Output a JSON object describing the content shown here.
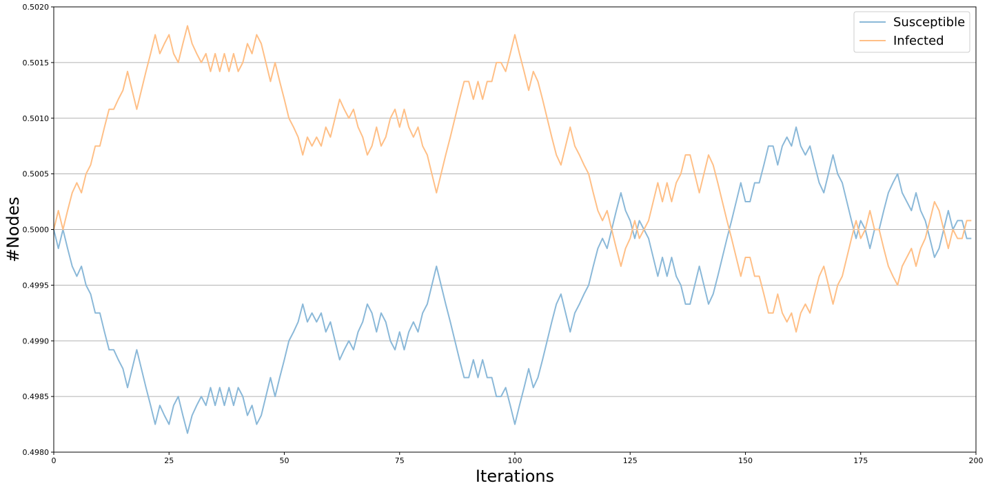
{
  "chart_data": {
    "type": "line",
    "title": "",
    "xlabel": "Iterations",
    "ylabel": "#Nodes",
    "xlim": [
      0,
      200
    ],
    "ylim": [
      0.498,
      0.502
    ],
    "xticks": [
      0,
      25,
      50,
      75,
      100,
      125,
      150,
      175,
      200
    ],
    "xtick_labels": [
      "0",
      "25",
      "50",
      "75",
      "100",
      "125",
      "150",
      "175",
      "200"
    ],
    "yticks": [
      0.498,
      0.4985,
      0.499,
      0.4995,
      0.5,
      0.5005,
      0.501,
      0.5015,
      0.502
    ],
    "ytick_labels": [
      "0.4980",
      "0.4985",
      "0.4990",
      "0.4995",
      "0.5000",
      "0.5005",
      "0.5010",
      "0.5015",
      "0.5020"
    ],
    "grid": "horizontal",
    "legend_position": "top-right",
    "series": [
      {
        "name": "Susceptible",
        "color": "#8ab8d8",
        "x": [
          0,
          1,
          2,
          3,
          4,
          5,
          6,
          7,
          8,
          9,
          10,
          11,
          12,
          13,
          14,
          15,
          16,
          17,
          18,
          19,
          20,
          21,
          22,
          23,
          24,
          25,
          26,
          27,
          28,
          29,
          30,
          31,
          32,
          33,
          34,
          35,
          36,
          37,
          38,
          39,
          40,
          41,
          42,
          43,
          44,
          45,
          46,
          47,
          48,
          49,
          50,
          51,
          52,
          53,
          54,
          55,
          56,
          57,
          58,
          59,
          60,
          61,
          62,
          63,
          64,
          65,
          66,
          67,
          68,
          69,
          70,
          71,
          72,
          73,
          74,
          75,
          76,
          77,
          78,
          79,
          80,
          81,
          82,
          83,
          84,
          85,
          86,
          87,
          88,
          89,
          90,
          91,
          92,
          93,
          94,
          95,
          96,
          97,
          98,
          99,
          100,
          101,
          102,
          103,
          104,
          105,
          106,
          107,
          108,
          109,
          110,
          111,
          112,
          113,
          114,
          115,
          116,
          117,
          118,
          119,
          120,
          121,
          122,
          123,
          124,
          125,
          126,
          127,
          128,
          129,
          130,
          131,
          132,
          133,
          134,
          135,
          136,
          137,
          138,
          139,
          140,
          141,
          142,
          143,
          144,
          145,
          146,
          147,
          148,
          149,
          150,
          151,
          152,
          153,
          154,
          155,
          156,
          157,
          158,
          159,
          160,
          161,
          162,
          163,
          164,
          165,
          166,
          167,
          168,
          169,
          170,
          171,
          172,
          173,
          174,
          175,
          176,
          177,
          178,
          179,
          180,
          181,
          182,
          183,
          184,
          185,
          186,
          187,
          188,
          189,
          190,
          191,
          192,
          193,
          194,
          195,
          196,
          197,
          198,
          199
        ],
        "values": [
          0.5,
          0.49983,
          0.5,
          0.49983,
          0.49967,
          0.49958,
          0.49967,
          0.4995,
          0.49942,
          0.49925,
          0.49925,
          0.49908,
          0.49892,
          0.49892,
          0.49883,
          0.49875,
          0.49858,
          0.49875,
          0.49892,
          0.49875,
          0.49858,
          0.49842,
          0.49825,
          0.49842,
          0.49833,
          0.49825,
          0.49842,
          0.4985,
          0.49833,
          0.49817,
          0.49833,
          0.49842,
          0.4985,
          0.49842,
          0.49858,
          0.49842,
          0.49858,
          0.49842,
          0.49858,
          0.49842,
          0.49858,
          0.4985,
          0.49833,
          0.49842,
          0.49825,
          0.49833,
          0.4985,
          0.49867,
          0.4985,
          0.49867,
          0.49883,
          0.499,
          0.49908,
          0.49917,
          0.49933,
          0.49917,
          0.49925,
          0.49917,
          0.49925,
          0.49908,
          0.49917,
          0.499,
          0.49883,
          0.49892,
          0.499,
          0.49892,
          0.49908,
          0.49917,
          0.49933,
          0.49925,
          0.49908,
          0.49925,
          0.49917,
          0.499,
          0.49892,
          0.49908,
          0.49892,
          0.49908,
          0.49917,
          0.49908,
          0.49925,
          0.49933,
          0.4995,
          0.49967,
          0.4995,
          0.49933,
          0.49917,
          0.499,
          0.49883,
          0.49867,
          0.49867,
          0.49883,
          0.49867,
          0.49883,
          0.49867,
          0.49867,
          0.4985,
          0.4985,
          0.49858,
          0.49842,
          0.49825,
          0.49842,
          0.49858,
          0.49875,
          0.49858,
          0.49867,
          0.49883,
          0.499,
          0.49917,
          0.49933,
          0.49942,
          0.49925,
          0.49908,
          0.49925,
          0.49933,
          0.49942,
          0.4995,
          0.49967,
          0.49983,
          0.49992,
          0.49983,
          0.5,
          0.50017,
          0.50033,
          0.50017,
          0.50008,
          0.49992,
          0.50008,
          0.5,
          0.49992,
          0.49975,
          0.49958,
          0.49975,
          0.49958,
          0.49975,
          0.49958,
          0.4995,
          0.49933,
          0.49933,
          0.4995,
          0.49967,
          0.4995,
          0.49933,
          0.49942,
          0.49958,
          0.49975,
          0.49992,
          0.50008,
          0.50025,
          0.50042,
          0.50025,
          0.50025,
          0.50042,
          0.50042,
          0.50058,
          0.50075,
          0.50075,
          0.50058,
          0.50075,
          0.50083,
          0.50075,
          0.50092,
          0.50075,
          0.50067,
          0.50075,
          0.50058,
          0.50042,
          0.50033,
          0.5005,
          0.50067,
          0.5005,
          0.50042,
          0.50025,
          0.50008,
          0.49992,
          0.50008,
          0.5,
          0.49983,
          0.5,
          0.5,
          0.50017,
          0.50033,
          0.50042,
          0.5005,
          0.50033,
          0.50025,
          0.50017,
          0.50033,
          0.50017,
          0.50008,
          0.49992,
          0.49975,
          0.49983,
          0.5,
          0.50017,
          0.5,
          0.50008,
          0.50008,
          0.49992,
          0.49992
        ]
      },
      {
        "name": "Infected",
        "color": "#ffbf86",
        "x": [
          0,
          1,
          2,
          3,
          4,
          5,
          6,
          7,
          8,
          9,
          10,
          11,
          12,
          13,
          14,
          15,
          16,
          17,
          18,
          19,
          20,
          21,
          22,
          23,
          24,
          25,
          26,
          27,
          28,
          29,
          30,
          31,
          32,
          33,
          34,
          35,
          36,
          37,
          38,
          39,
          40,
          41,
          42,
          43,
          44,
          45,
          46,
          47,
          48,
          49,
          50,
          51,
          52,
          53,
          54,
          55,
          56,
          57,
          58,
          59,
          60,
          61,
          62,
          63,
          64,
          65,
          66,
          67,
          68,
          69,
          70,
          71,
          72,
          73,
          74,
          75,
          76,
          77,
          78,
          79,
          80,
          81,
          82,
          83,
          84,
          85,
          86,
          87,
          88,
          89,
          90,
          91,
          92,
          93,
          94,
          95,
          96,
          97,
          98,
          99,
          100,
          101,
          102,
          103,
          104,
          105,
          106,
          107,
          108,
          109,
          110,
          111,
          112,
          113,
          114,
          115,
          116,
          117,
          118,
          119,
          120,
          121,
          122,
          123,
          124,
          125,
          126,
          127,
          128,
          129,
          130,
          131,
          132,
          133,
          134,
          135,
          136,
          137,
          138,
          139,
          140,
          141,
          142,
          143,
          144,
          145,
          146,
          147,
          148,
          149,
          150,
          151,
          152,
          153,
          154,
          155,
          156,
          157,
          158,
          159,
          160,
          161,
          162,
          163,
          164,
          165,
          166,
          167,
          168,
          169,
          170,
          171,
          172,
          173,
          174,
          175,
          176,
          177,
          178,
          179,
          180,
          181,
          182,
          183,
          184,
          185,
          186,
          187,
          188,
          189,
          190,
          191,
          192,
          193,
          194,
          195,
          196,
          197,
          198,
          199
        ],
        "values": [
          0.5,
          0.50017,
          0.5,
          0.50017,
          0.50033,
          0.50042,
          0.50033,
          0.5005,
          0.50058,
          0.50075,
          0.50075,
          0.50092,
          0.50108,
          0.50108,
          0.50117,
          0.50125,
          0.50142,
          0.50125,
          0.50108,
          0.50125,
          0.50142,
          0.50158,
          0.50175,
          0.50158,
          0.50167,
          0.50175,
          0.50158,
          0.5015,
          0.50167,
          0.50183,
          0.50167,
          0.50158,
          0.5015,
          0.50158,
          0.50142,
          0.50158,
          0.50142,
          0.50158,
          0.50142,
          0.50158,
          0.50142,
          0.5015,
          0.50167,
          0.50158,
          0.50175,
          0.50167,
          0.5015,
          0.50133,
          0.5015,
          0.50133,
          0.50117,
          0.501,
          0.50092,
          0.50083,
          0.50067,
          0.50083,
          0.50075,
          0.50083,
          0.50075,
          0.50092,
          0.50083,
          0.501,
          0.50117,
          0.50108,
          0.501,
          0.50108,
          0.50092,
          0.50083,
          0.50067,
          0.50075,
          0.50092,
          0.50075,
          0.50083,
          0.501,
          0.50108,
          0.50092,
          0.50108,
          0.50092,
          0.50083,
          0.50092,
          0.50075,
          0.50067,
          0.5005,
          0.50033,
          0.5005,
          0.50067,
          0.50083,
          0.501,
          0.50117,
          0.50133,
          0.50133,
          0.50117,
          0.50133,
          0.50117,
          0.50133,
          0.50133,
          0.5015,
          0.5015,
          0.50142,
          0.50158,
          0.50175,
          0.50158,
          0.50142,
          0.50125,
          0.50142,
          0.50133,
          0.50117,
          0.501,
          0.50083,
          0.50067,
          0.50058,
          0.50075,
          0.50092,
          0.50075,
          0.50067,
          0.50058,
          0.5005,
          0.50033,
          0.50017,
          0.50008,
          0.50017,
          0.5,
          0.49983,
          0.49967,
          0.49983,
          0.49992,
          0.50008,
          0.49992,
          0.5,
          0.50008,
          0.50025,
          0.50042,
          0.50025,
          0.50042,
          0.50025,
          0.50042,
          0.5005,
          0.50067,
          0.50067,
          0.5005,
          0.50033,
          0.5005,
          0.50067,
          0.50058,
          0.50042,
          0.50025,
          0.50008,
          0.49992,
          0.49975,
          0.49958,
          0.49975,
          0.49975,
          0.49958,
          0.49958,
          0.49942,
          0.49925,
          0.49925,
          0.49942,
          0.49925,
          0.49917,
          0.49925,
          0.49908,
          0.49925,
          0.49933,
          0.49925,
          0.49942,
          0.49958,
          0.49967,
          0.4995,
          0.49933,
          0.4995,
          0.49958,
          0.49975,
          0.49992,
          0.50008,
          0.49992,
          0.5,
          0.50017,
          0.5,
          0.5,
          0.49983,
          0.49967,
          0.49958,
          0.4995,
          0.49967,
          0.49975,
          0.49983,
          0.49967,
          0.49983,
          0.49992,
          0.50008,
          0.50025,
          0.50017,
          0.5,
          0.49983,
          0.5,
          0.49992,
          0.49992,
          0.50008,
          0.50008
        ]
      }
    ]
  }
}
